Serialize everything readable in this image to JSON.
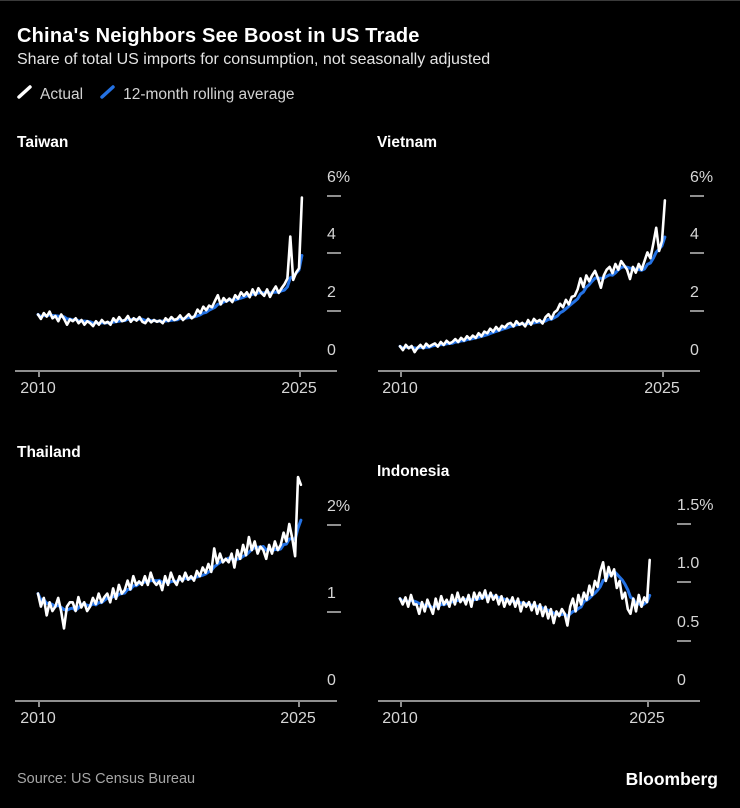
{
  "header": {
    "title": "China's Neighbors See Boost in US Trade",
    "subtitle": "Share of total US imports for consumption, not seasonally adjusted"
  },
  "legend": [
    {
      "label": "Actual",
      "color": "#ffffff"
    },
    {
      "label": "12-month rolling average",
      "color": "#2472e4"
    }
  ],
  "source": {
    "label": "Source: US Census Bureau"
  },
  "branding": {
    "logo": "Bloomberg"
  },
  "colors": {
    "background": "#000000",
    "actual_line": "#ffffff",
    "average_line": "#2472e4",
    "axis": "#8f8f8f",
    "tick_label": "#d6d6d6"
  },
  "chart_data": [
    {
      "type": "line",
      "title": "Taiwan",
      "unit": "% of total US imports for consumption",
      "x_start_year": 2010,
      "x_end_year": 2025.17,
      "cadence": "bimonthly",
      "xticks": [
        {
          "label": "2010",
          "t": 0
        },
        {
          "label": "2025",
          "t": 15
        }
      ],
      "yticks": [
        {
          "label": "6%",
          "value": 6
        },
        {
          "label": "4",
          "value": 4
        },
        {
          "label": "2",
          "value": 2
        },
        {
          "label": "0",
          "value": 0
        }
      ],
      "ylim": [
        0,
        6.3
      ],
      "rolling_window_points": 6,
      "series": [
        {
          "name": "Actual",
          "values": [
            1.85,
            1.7,
            1.9,
            1.78,
            1.95,
            1.72,
            1.8,
            1.62,
            1.85,
            1.7,
            1.5,
            1.68,
            1.62,
            1.72,
            1.55,
            1.66,
            1.5,
            1.62,
            1.55,
            1.45,
            1.62,
            1.5,
            1.66,
            1.55,
            1.6,
            1.5,
            1.72,
            1.6,
            1.76,
            1.62,
            1.66,
            1.8,
            1.6,
            1.72,
            1.64,
            1.76,
            1.6,
            1.55,
            1.7,
            1.58,
            1.66,
            1.6,
            1.64,
            1.55,
            1.72,
            1.63,
            1.76,
            1.66,
            1.7,
            1.82,
            1.66,
            1.76,
            1.86,
            1.72,
            1.8,
            2.02,
            1.9,
            2.12,
            2.0,
            2.16,
            2.1,
            2.32,
            2.52,
            2.2,
            2.42,
            2.3,
            2.4,
            2.28,
            2.52,
            2.4,
            2.62,
            2.5,
            2.62,
            2.45,
            2.72,
            2.52,
            2.76,
            2.6,
            2.5,
            2.72,
            2.46,
            2.66,
            2.82,
            2.6,
            2.76,
            2.9,
            3.1,
            4.55,
            3.05,
            3.3,
            3.45,
            5.9
          ]
        },
        {
          "name": "12-month rolling average",
          "derived_from": "Actual"
        }
      ]
    },
    {
      "type": "line",
      "title": "Vietnam",
      "unit": "% of total US imports for consumption",
      "x_start_year": 2010,
      "x_end_year": 2025.17,
      "cadence": "bimonthly",
      "xticks": [
        {
          "label": "2010",
          "t": 0
        },
        {
          "label": "2025",
          "t": 15
        }
      ],
      "yticks": [
        {
          "label": "6%",
          "value": 6
        },
        {
          "label": "4",
          "value": 4
        },
        {
          "label": "2",
          "value": 2
        },
        {
          "label": "0",
          "value": 0
        }
      ],
      "ylim": [
        0,
        6.3
      ],
      "rolling_window_points": 6,
      "series": [
        {
          "name": "Actual",
          "values": [
            0.75,
            0.62,
            0.8,
            0.68,
            0.76,
            0.55,
            0.7,
            0.8,
            0.68,
            0.84,
            0.74,
            0.8,
            0.85,
            0.74,
            0.9,
            0.8,
            0.94,
            0.85,
            0.9,
            1.0,
            0.9,
            1.04,
            0.95,
            1.1,
            1.0,
            1.12,
            1.04,
            1.2,
            1.1,
            1.26,
            1.2,
            1.36,
            1.26,
            1.42,
            1.3,
            1.46,
            1.4,
            1.52,
            1.56,
            1.44,
            1.62,
            1.5,
            1.56,
            1.44,
            1.66,
            1.5,
            1.7,
            1.6,
            1.66,
            1.54,
            1.76,
            1.86,
            1.7,
            1.92,
            2.0,
            2.22,
            2.1,
            2.36,
            2.2,
            2.46,
            2.5,
            2.72,
            3.1,
            2.8,
            3.2,
            3.0,
            3.2,
            3.36,
            3.1,
            2.78,
            3.2,
            3.4,
            3.5,
            3.28,
            3.6,
            3.4,
            3.7,
            3.55,
            3.4,
            3.08,
            3.5,
            3.3,
            3.6,
            3.4,
            3.7,
            4.0,
            3.8,
            4.3,
            4.85,
            4.05,
            4.4,
            5.8
          ]
        },
        {
          "name": "12-month rolling average",
          "derived_from": "Actual"
        }
      ]
    },
    {
      "type": "line",
      "title": "Thailand",
      "unit": "% of total US imports for consumption",
      "x_start_year": 2010,
      "x_end_year": 2025.17,
      "cadence": "bimonthly",
      "xticks": [
        {
          "label": "2010",
          "t": 0
        },
        {
          "label": "2025",
          "t": 15
        }
      ],
      "yticks": [
        {
          "label": "2%",
          "value": 2
        },
        {
          "label": "1",
          "value": 1
        },
        {
          "label": "0",
          "value": 0
        }
      ],
      "ylim": [
        0,
        2.6
      ],
      "rolling_window_points": 6,
      "series": [
        {
          "name": "Actual",
          "values": [
            1.2,
            1.05,
            1.15,
            0.95,
            1.1,
            1.0,
            1.05,
            1.15,
            1.0,
            0.8,
            1.05,
            1.1,
            1.1,
            1.0,
            1.16,
            1.04,
            1.1,
            1.0,
            1.05,
            1.15,
            1.08,
            1.2,
            1.1,
            1.16,
            1.2,
            1.1,
            1.26,
            1.14,
            1.3,
            1.2,
            1.24,
            1.35,
            1.25,
            1.4,
            1.3,
            1.34,
            1.3,
            1.4,
            1.3,
            1.44,
            1.34,
            1.3,
            1.34,
            1.24,
            1.4,
            1.3,
            1.44,
            1.35,
            1.3,
            1.4,
            1.34,
            1.44,
            1.36,
            1.4,
            1.35,
            1.46,
            1.4,
            1.5,
            1.44,
            1.54,
            1.45,
            1.72,
            1.55,
            1.66,
            1.56,
            1.6,
            1.56,
            1.66,
            1.5,
            1.7,
            1.6,
            1.76,
            1.64,
            1.85,
            1.7,
            1.8,
            1.66,
            1.74,
            1.7,
            1.6,
            1.76,
            1.66,
            1.8,
            1.7,
            1.76,
            1.9,
            1.8,
            2.0,
            1.84,
            1.63,
            2.54,
            2.45
          ]
        },
        {
          "name": "12-month rolling average",
          "derived_from": "Actual"
        }
      ]
    },
    {
      "type": "line",
      "title": "Indonesia",
      "unit": "% of total US imports for consumption",
      "x_start_year": 2010,
      "x_end_year": 2025.17,
      "cadence": "bimonthly",
      "xticks": [
        {
          "label": "2010",
          "t": 0
        },
        {
          "label": "2025",
          "t": 15
        }
      ],
      "yticks": [
        {
          "label": "1.5%",
          "value": 1.5
        },
        {
          "label": "1.0",
          "value": 1.0
        },
        {
          "label": "0.5",
          "value": 0.5
        },
        {
          "label": "0",
          "value": 0
        }
      ],
      "ylim": [
        0,
        1.6
      ],
      "rolling_window_points": 6,
      "series": [
        {
          "name": "Actual",
          "values": [
            0.85,
            0.8,
            0.86,
            0.78,
            0.88,
            0.8,
            0.8,
            0.72,
            0.82,
            0.74,
            0.84,
            0.78,
            0.72,
            0.85,
            0.76,
            0.87,
            0.8,
            0.84,
            0.78,
            0.88,
            0.8,
            0.9,
            0.82,
            0.86,
            0.8,
            0.88,
            0.78,
            0.9,
            0.84,
            0.9,
            0.85,
            0.92,
            0.82,
            0.9,
            0.84,
            0.88,
            0.8,
            0.87,
            0.78,
            0.85,
            0.8,
            0.86,
            0.78,
            0.85,
            0.74,
            0.82,
            0.78,
            0.82,
            0.75,
            0.82,
            0.72,
            0.8,
            0.7,
            0.78,
            0.68,
            0.76,
            0.64,
            0.74,
            0.7,
            0.76,
            0.72,
            0.62,
            0.78,
            0.85,
            0.74,
            0.88,
            0.8,
            0.9,
            0.84,
            0.96,
            0.88,
            1.0,
            0.95,
            1.08,
            1.16,
            1.0,
            1.12,
            1.04,
            1.1,
            0.94,
            1.0,
            0.85,
            0.9,
            0.76,
            0.72,
            0.85,
            0.74,
            0.88,
            0.78,
            0.86,
            0.82,
            1.18
          ]
        },
        {
          "name": "12-month rolling average",
          "derived_from": "Actual"
        }
      ]
    }
  ]
}
